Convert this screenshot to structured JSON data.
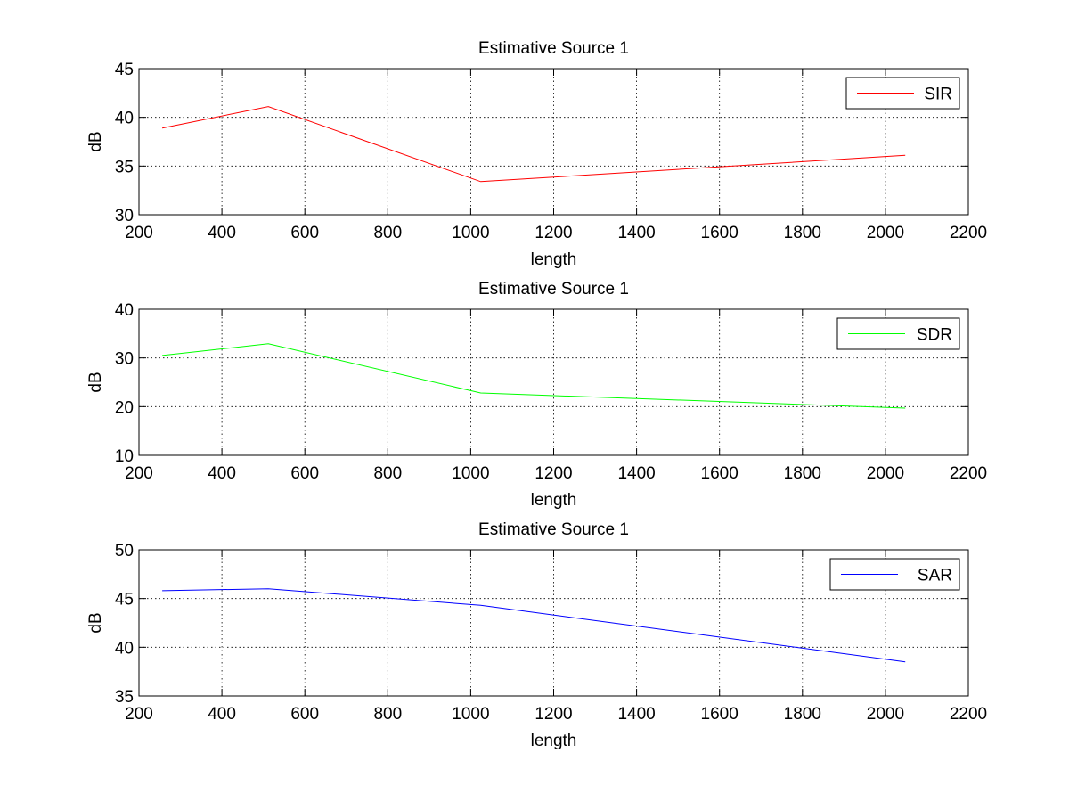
{
  "chart_data": [
    {
      "type": "line",
      "title": "Estimative Source 1",
      "xlabel": "length",
      "ylabel": "dB",
      "xlim": [
        200,
        2200
      ],
      "ylim": [
        30,
        45
      ],
      "xticks": [
        200,
        400,
        600,
        800,
        1000,
        1200,
        1400,
        1600,
        1800,
        2000,
        2200
      ],
      "yticks": [
        30,
        35,
        40,
        45
      ],
      "grid": true,
      "legend_position": "top-right",
      "series": [
        {
          "name": "SIR",
          "color": "#ff0000",
          "x": [
            256,
            512,
            1024,
            2048
          ],
          "y": [
            38.9,
            41.1,
            33.4,
            36.1
          ]
        }
      ]
    },
    {
      "type": "line",
      "title": "Estimative Source 1",
      "xlabel": "length",
      "ylabel": "dB",
      "xlim": [
        200,
        2200
      ],
      "ylim": [
        10,
        40
      ],
      "xticks": [
        200,
        400,
        600,
        800,
        1000,
        1200,
        1400,
        1600,
        1800,
        2000,
        2200
      ],
      "yticks": [
        10,
        20,
        30,
        40
      ],
      "grid": true,
      "legend_position": "top-right",
      "series": [
        {
          "name": "SDR",
          "color": "#00ff00",
          "x": [
            256,
            512,
            1024,
            2048
          ],
          "y": [
            30.5,
            32.9,
            22.8,
            19.7
          ]
        }
      ]
    },
    {
      "type": "line",
      "title": "Estimative Source 1",
      "xlabel": "length",
      "ylabel": "dB",
      "xlim": [
        200,
        2200
      ],
      "ylim": [
        35,
        50
      ],
      "xticks": [
        200,
        400,
        600,
        800,
        1000,
        1200,
        1400,
        1600,
        1800,
        2000,
        2200
      ],
      "yticks": [
        35,
        40,
        45,
        50
      ],
      "grid": true,
      "legend_position": "top-right",
      "series": [
        {
          "name": "SAR",
          "color": "#0000ff",
          "x": [
            256,
            512,
            1024,
            2048
          ],
          "y": [
            45.8,
            46.0,
            44.3,
            38.5
          ]
        }
      ]
    }
  ]
}
